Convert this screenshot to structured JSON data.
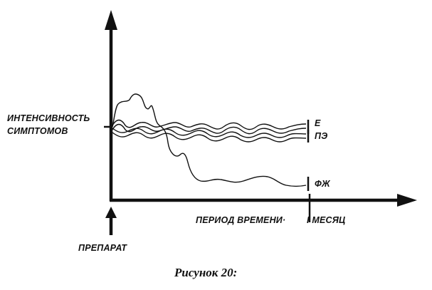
{
  "figure": {
    "y_axis_label_line1": "ИНТЕНСИВНОСТЬ",
    "y_axis_label_line2": "СИМПТОМОВ",
    "x_axis_label": "ПЕРИОД ВРЕМЕНИ·",
    "x_end_label": "I МЕСЯЦ",
    "start_label": "ПРЕПАРАТ",
    "caption": "Рисунок 20:"
  },
  "chart_data": {
    "type": "line",
    "title": "",
    "xlabel": "ПЕРИОД ВРЕМЕНИ·",
    "ylabel": "ИНТЕНСИВНОСТЬ СИМПТОМОВ",
    "grid": false,
    "legend": "line-end labels on right",
    "x_end_tick": "I МЕСЯЦ",
    "start_marker": "ПРЕПАРАТ",
    "series": [
      {
        "name": "Е"
      },
      {
        "name": "ПЭ"
      },
      {
        "name": "ФЖ"
      }
    ]
  }
}
